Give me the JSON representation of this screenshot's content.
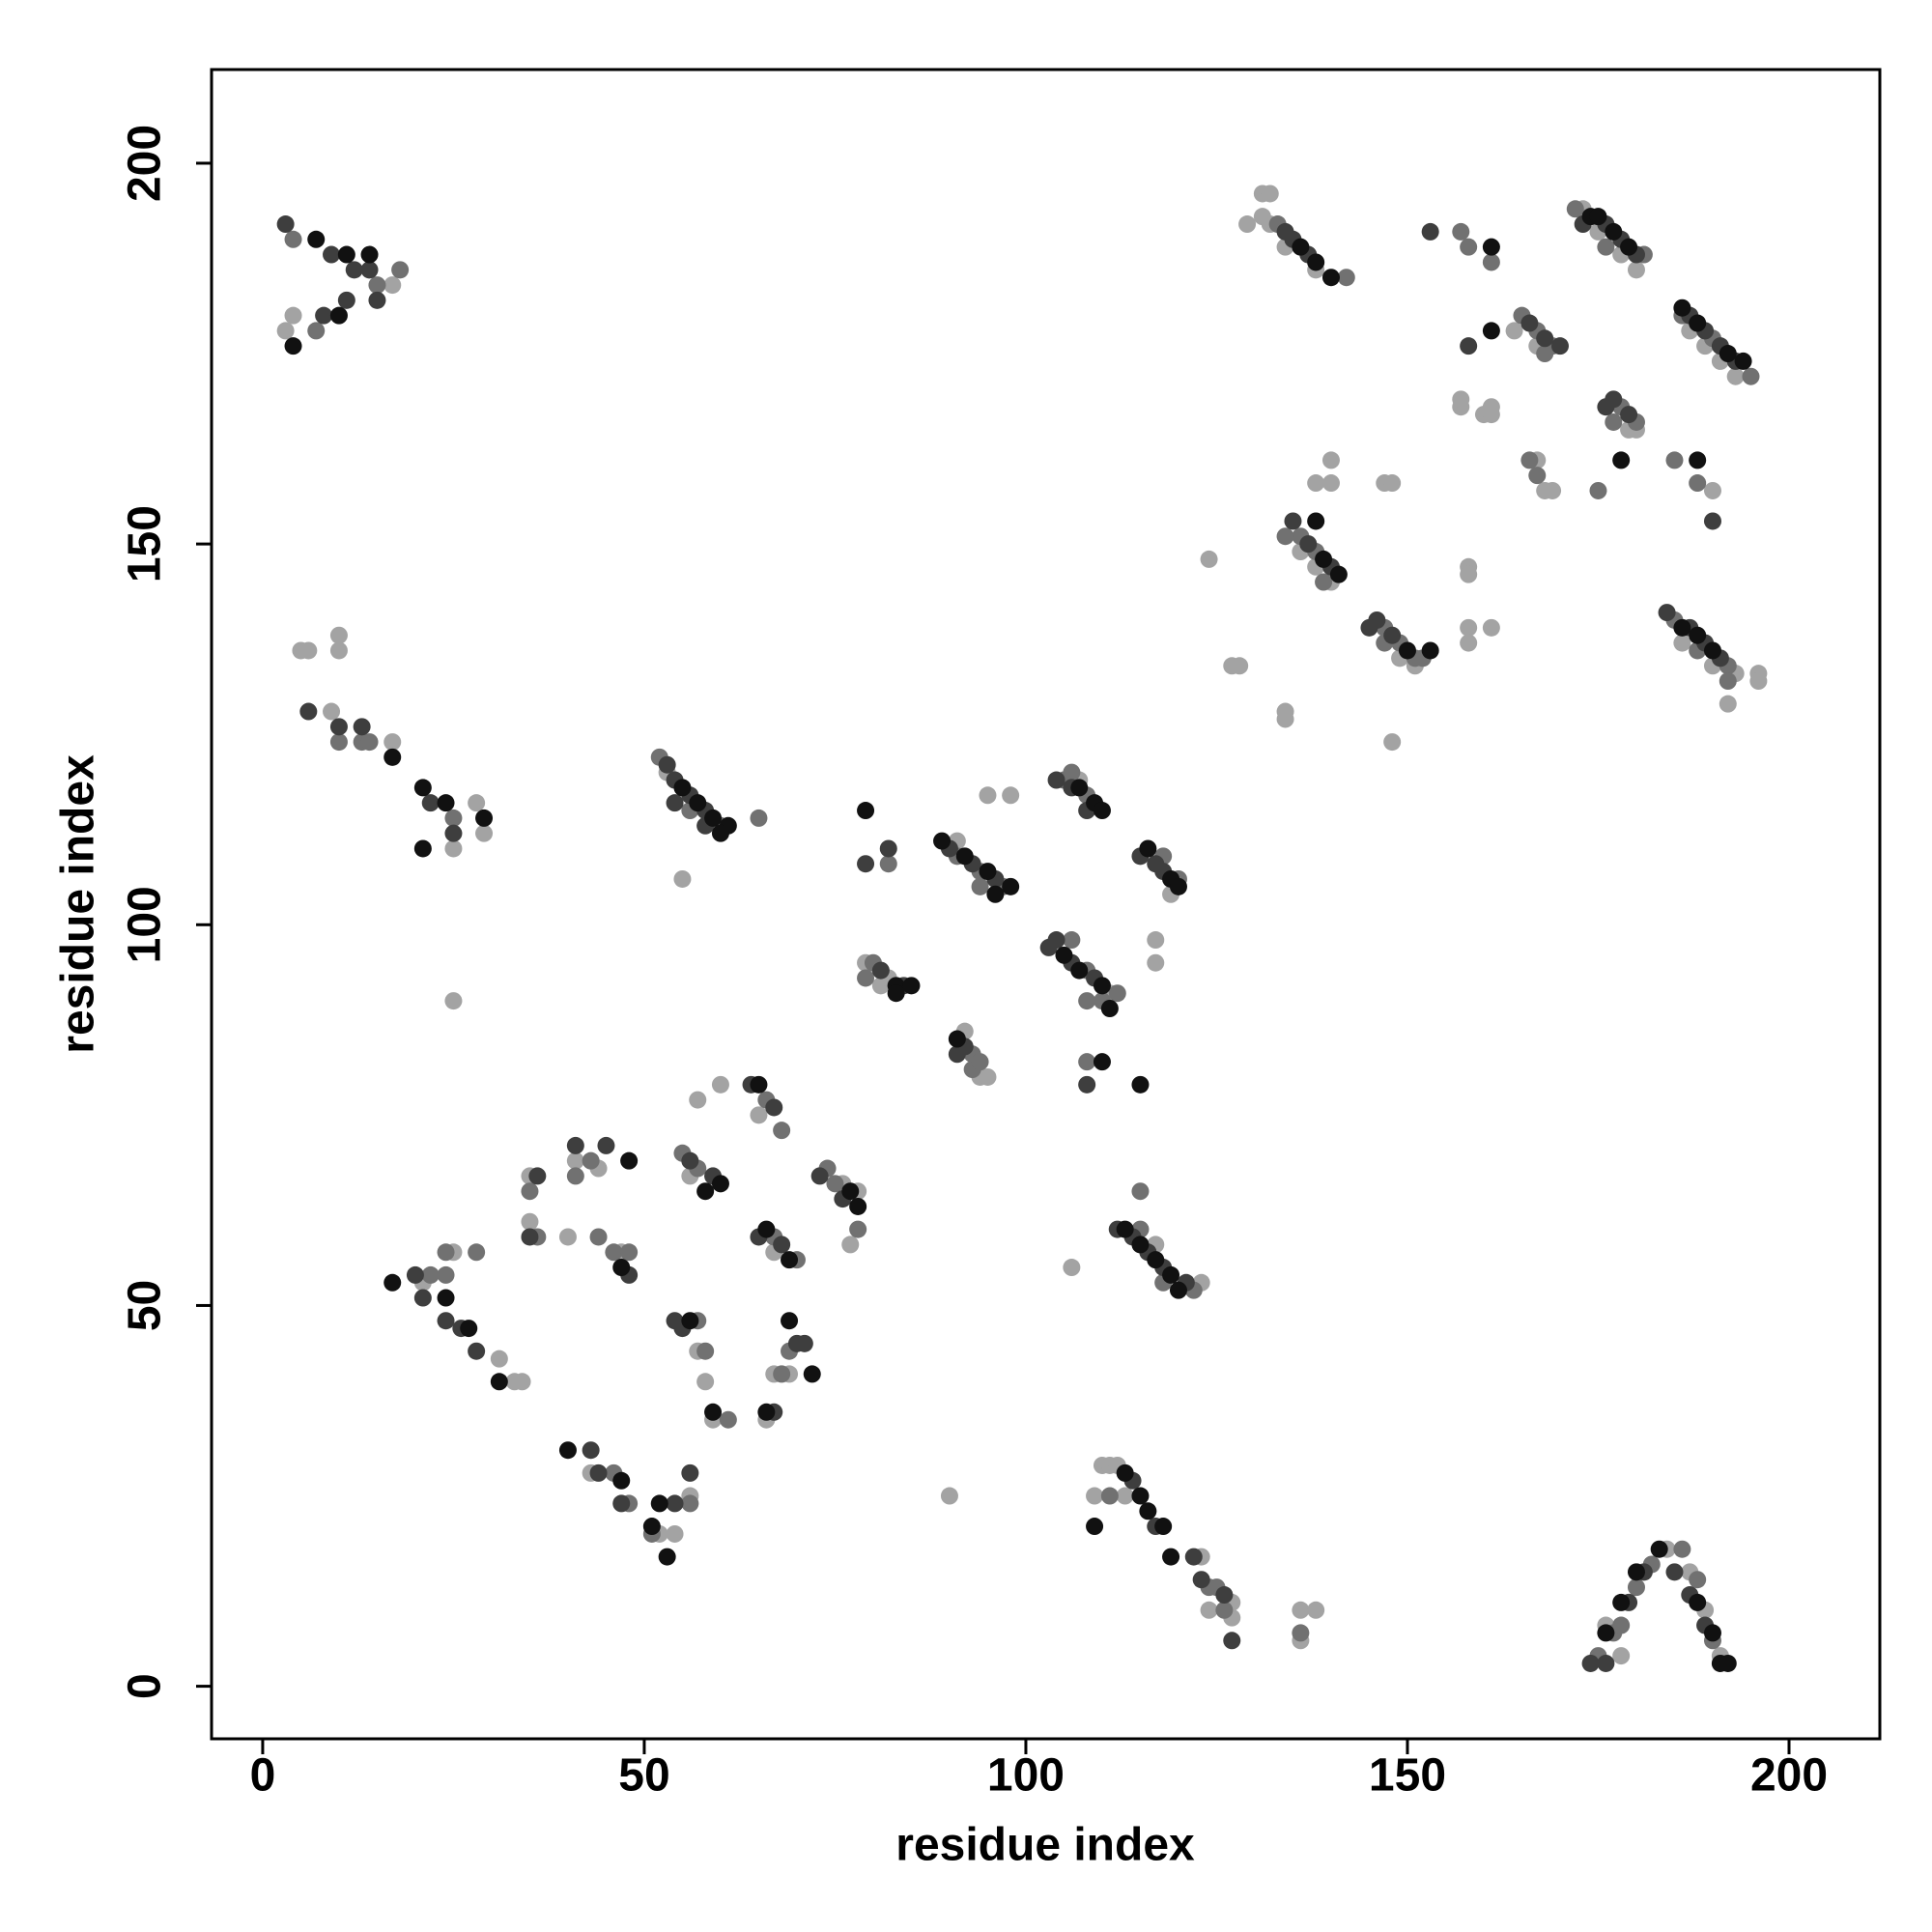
{
  "chart_data": {
    "type": "scatter",
    "xlabel": "residue index",
    "ylabel": "residue index",
    "xlim": [
      -6.7,
      211.9
    ],
    "ylim": [
      -6.9,
      212.3
    ],
    "xticks": [
      0,
      50,
      100,
      150,
      200
    ],
    "yticks": [
      0,
      50,
      100,
      150,
      200
    ],
    "grid": false,
    "series": [
      {
        "color": "#a3a3a3",
        "x": [
          4,
          17,
          3,
          5,
          6,
          10,
          10,
          9,
          17,
          28,
          29,
          25,
          25,
          53,
          55,
          79,
          81,
          82,
          91,
          95,
          98,
          107,
          111,
          117,
          117,
          92,
          94,
          95,
          119,
          117,
          123,
          106,
          110,
          111,
          112,
          109,
          113,
          123,
          127,
          127,
          124,
          136,
          138,
          136,
          90,
          21,
          25,
          31,
          33,
          34,
          35,
          35,
          40,
          41,
          44,
          47,
          43,
          52,
          54,
          56,
          57,
          58,
          59,
          56,
          57,
          60,
          65,
          67,
          66,
          67,
          69,
          76,
          78,
          77,
          131,
          132,
          131,
          132,
          129,
          134,
          138,
          157,
          157,
          160,
          161,
          161,
          164,
          167,
          173,
          175,
          178,
          180,
          187,
          189,
          191,
          193,
          179,
          180,
          167,
          168,
          169,
          190,
          136,
          138,
          140,
          138,
          140,
          140,
          147,
          148,
          149,
          151,
          124,
          127,
          128,
          134,
          134,
          148,
          158,
          158,
          158,
          158,
          161,
          186,
          190,
          196,
          196,
          192,
          193,
          178,
          176,
          184,
          187,
          189,
          191
        ],
        "values": [
          180,
          184,
          178,
          136,
          136,
          136,
          138,
          128,
          124,
          116,
          112,
          110,
          90,
          120,
          106,
          95,
          92,
          93,
          111,
          117,
          117,
          119,
          91,
          98,
          95,
          86,
          80,
          80,
          104,
          58,
          53,
          55,
          29,
          29,
          29,
          25,
          25,
          17,
          11,
          9,
          10,
          10,
          10,
          6,
          25,
          53,
          57,
          43,
          40,
          40,
          67,
          61,
          59,
          69,
          68,
          57,
          28,
          20,
          20,
          25,
          44,
          40,
          35,
          67,
          77,
          79,
          75,
          57,
          35,
          41,
          41,
          66,
          65,
          58,
          196,
          196,
          193,
          192,
          192,
          189,
          186,
          168,
          169,
          167,
          167,
          168,
          178,
          176,
          194,
          191,
          188,
          186,
          178,
          176,
          174,
          172,
          165,
          165,
          161,
          157,
          157,
          157,
          149,
          147,
          145,
          158,
          158,
          161,
          158,
          158,
          135,
          134,
          148,
          134,
          134,
          127,
          128,
          124,
          147,
          146,
          139,
          137,
          139,
          137,
          134,
          133,
          132,
          129,
          133,
          4,
          8,
          18,
          15,
          10,
          4
        ]
      },
      {
        "color": "#717171",
        "x": [
          4,
          15,
          18,
          7,
          10,
          13,
          14,
          25,
          52,
          60,
          56,
          65,
          82,
          79,
          80,
          91,
          94,
          97,
          94,
          105,
          108,
          106,
          106,
          108,
          108,
          110,
          112,
          93,
          93,
          94,
          108,
          118,
          120,
          115,
          122,
          118,
          115,
          111,
          124,
          125,
          126,
          136,
          22,
          24,
          28,
          24,
          35,
          36,
          41,
          43,
          44,
          46,
          48,
          46,
          48,
          51,
          56,
          57,
          58,
          61,
          55,
          57,
          66,
          68,
          67,
          70,
          69,
          68,
          74,
          75,
          78,
          133,
          142,
          157,
          158,
          161,
          165,
          167,
          169,
          168,
          172,
          176,
          181,
          186,
          190,
          195,
          178,
          180,
          177,
          185,
          188,
          166,
          167,
          175,
          136,
          138,
          139,
          134,
          147,
          149,
          151,
          152,
          147,
          185,
          188,
          192,
          192,
          175,
          177,
          180,
          182,
          186,
          188,
          190,
          178
        ],
        "values": [
          190,
          184,
          186,
          178,
          124,
          124,
          124,
          114,
          122,
          113,
          115,
          114,
          108,
          93,
          95,
          109,
          107,
          105,
          105,
          119,
          117,
          120,
          98,
          94,
          90,
          90,
          91,
          81,
          83,
          82,
          82,
          109,
          106,
          60,
          52,
          53,
          65,
          25,
          13,
          13,
          10,
          7,
          54,
          57,
          57,
          54,
          65,
          59,
          67,
          69,
          59,
          57,
          57,
          28,
          24,
          20,
          24,
          48,
          44,
          35,
          70,
          68,
          77,
          73,
          59,
          56,
          44,
          41,
          68,
          66,
          60,
          192,
          185,
          191,
          189,
          187,
          180,
          178,
          176,
          175,
          194,
          189,
          188,
          180,
          177,
          172,
          168,
          166,
          166,
          161,
          158,
          161,
          159,
          157,
          151,
          149,
          145,
          151,
          139,
          137,
          135,
          135,
          137,
          140,
          136,
          134,
          132,
          4,
          7,
          13,
          16,
          18,
          14,
          6,
          8
        ]
      },
      {
        "color": "#3e3e3e",
        "x": [
          3,
          9,
          12,
          14,
          8,
          11,
          15,
          6,
          10,
          13,
          25,
          22,
          53,
          54,
          56,
          58,
          54,
          58,
          79,
          82,
          81,
          84,
          90,
          93,
          96,
          104,
          106,
          108,
          103,
          104,
          106,
          109,
          92,
          91,
          108,
          115,
          117,
          118,
          112,
          114,
          116,
          118,
          121,
          114,
          117,
          122,
          123,
          126,
          127,
          20,
          21,
          24,
          26,
          28,
          36,
          35,
          41,
          45,
          48,
          43,
          44,
          47,
          54,
          56,
          54,
          55,
          59,
          56,
          64,
          67,
          65,
          68,
          67,
          70,
          71,
          73,
          76,
          134,
          135,
          137,
          153,
          158,
          166,
          168,
          170,
          173,
          176,
          178,
          180,
          187,
          189,
          191,
          193,
          176,
          177,
          179,
          190,
          135,
          137,
          140,
          146,
          148,
          145,
          184,
          187,
          189,
          191,
          174,
          179,
          181,
          185,
          187,
          189,
          176
        ],
        "values": [
          192,
          188,
          186,
          186,
          180,
          182,
          182,
          128,
          126,
          126,
          112,
          116,
          121,
          119,
          117,
          115,
          116,
          113,
          108,
          110,
          94,
          92,
          110,
          108,
          106,
          119,
          118,
          115,
          97,
          98,
          95,
          93,
          84,
          83,
          79,
          109,
          108,
          107,
          60,
          59,
          57,
          55,
          53,
          27,
          21,
          17,
          14,
          12,
          6,
          54,
          51,
          48,
          47,
          44,
          67,
          59,
          71,
          71,
          54,
          31,
          28,
          24,
          24,
          28,
          48,
          47,
          67,
          69,
          79,
          76,
          59,
          58,
          36,
          45,
          45,
          67,
          64,
          191,
          190,
          188,
          191,
          176,
          179,
          177,
          176,
          192,
          192,
          190,
          188,
          180,
          178,
          176,
          174,
          168,
          169,
          167,
          153,
          153,
          150,
          147,
          140,
          138,
          139,
          141,
          139,
          137,
          135,
          3,
          11,
          15,
          15,
          12,
          8,
          3
        ]
      },
      {
        "color": "#111111",
        "x": [
          7,
          11,
          14,
          4,
          10,
          17,
          21,
          24,
          29,
          21,
          55,
          57,
          59,
          61,
          60,
          79,
          83,
          85,
          83,
          89,
          92,
          95,
          98,
          96,
          107,
          109,
          110,
          105,
          107,
          110,
          111,
          91,
          110,
          115,
          116,
          119,
          120,
          113,
          115,
          117,
          119,
          120,
          113,
          115,
          116,
          118,
          109,
          119,
          17,
          24,
          27,
          31,
          48,
          47,
          40,
          47,
          51,
          53,
          52,
          56,
          59,
          58,
          60,
          65,
          66,
          69,
          69,
          72,
          66,
          77,
          78,
          136,
          138,
          140,
          161,
          161,
          174,
          175,
          177,
          179,
          186,
          188,
          192,
          194,
          178,
          188,
          139,
          141,
          138,
          153,
          150,
          186,
          188,
          190,
          176,
          178,
          180,
          183,
          188,
          190,
          191,
          192
        ],
        "values": [
          190,
          188,
          188,
          176,
          180,
          122,
          118,
          116,
          114,
          110,
          118,
          116,
          114,
          113,
          112,
          115,
          92,
          92,
          91,
          111,
          109,
          107,
          105,
          104,
          118,
          116,
          115,
          96,
          94,
          92,
          89,
          85,
          82,
          79,
          110,
          106,
          105,
          60,
          58,
          56,
          54,
          52,
          28,
          25,
          23,
          21,
          21,
          17,
          53,
          51,
          47,
          40,
          69,
          55,
          31,
          27,
          21,
          17,
          24,
          48,
          36,
          65,
          66,
          79,
          60,
          56,
          48,
          41,
          36,
          65,
          63,
          189,
          187,
          185,
          178,
          189,
          193,
          193,
          191,
          189,
          181,
          179,
          175,
          174,
          161,
          161,
          148,
          146,
          153,
          136,
          136,
          139,
          138,
          136,
          7,
          11,
          15,
          18,
          11,
          7,
          3,
          3
        ]
      }
    ]
  }
}
